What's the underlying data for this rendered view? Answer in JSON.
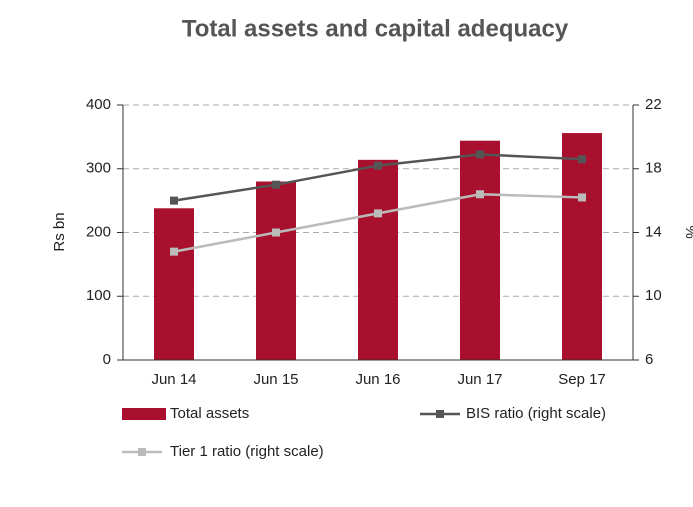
{
  "chart_data": {
    "type": "bar",
    "title": "Total assets and capital adequacy",
    "ylabel": "Rs bn",
    "y2label": "%",
    "categories": [
      "Jun 14",
      "Jun 15",
      "Jun 16",
      "Jun 17",
      "Sep 17"
    ],
    "series": [
      {
        "name": "Total assets",
        "type": "bar",
        "color": "#a8102e",
        "values": [
          238,
          280,
          314,
          344,
          356
        ]
      },
      {
        "name": "BIS ratio (right scale)",
        "type": "line",
        "axis": "y2",
        "color": "#555555",
        "values": [
          16.0,
          17.0,
          18.2,
          18.9,
          18.6
        ]
      },
      {
        "name": "Tier 1 ratio (right scale)",
        "type": "line",
        "axis": "y2",
        "color": "#bbbbbb",
        "values": [
          12.8,
          14.0,
          15.2,
          16.4,
          16.2
        ]
      }
    ],
    "ylim": [
      0,
      400
    ],
    "yticks": [
      0,
      100,
      200,
      300,
      400
    ],
    "y2lim": [
      6,
      22
    ],
    "y2ticks": [
      6,
      10,
      14,
      18,
      22
    ],
    "grid": true
  }
}
